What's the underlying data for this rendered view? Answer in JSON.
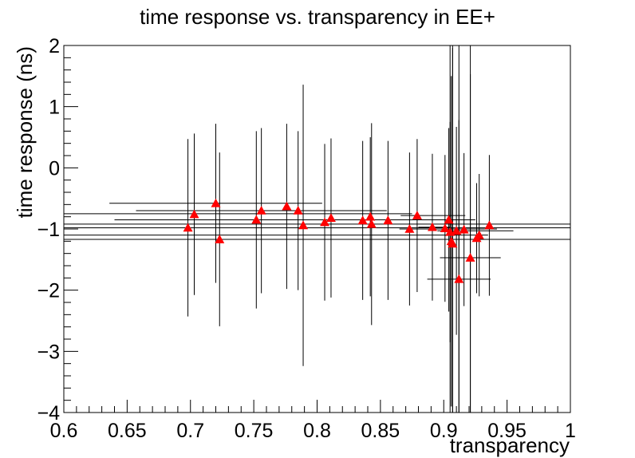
{
  "chart_data": {
    "type": "scatter",
    "title": "time response vs. transparency in EE+",
    "xlabel": "transparency",
    "ylabel": "time response (ns)",
    "xlim": [
      0.6,
      1.0
    ],
    "ylim": [
      -4,
      2
    ],
    "x_ticks": [
      "0.6",
      "0.65",
      "0.7",
      "0.75",
      "0.8",
      "0.85",
      "0.9",
      "0.95",
      "1"
    ],
    "y_ticks": [
      "−4",
      "−3",
      "−2",
      "−1",
      "0",
      "1",
      "2"
    ],
    "grid": false,
    "marker": "triangle-up",
    "marker_color": "#ff0000",
    "errorbar_color": "#000000",
    "points": [
      {
        "x": 0.698,
        "y": -0.98,
        "xerr": 0.0,
        "yerr": 1.45
      },
      {
        "x": 0.703,
        "y": -0.76,
        "xerr": 0.0,
        "yerr": 1.32
      },
      {
        "x": 0.72,
        "y": -0.58,
        "xerr": 0.0,
        "yerr": 1.3
      },
      {
        "x": 0.723,
        "y": -1.17,
        "xerr": 0.0,
        "yerr": 1.42
      },
      {
        "x": 0.752,
        "y": -0.85,
        "xerr": 0.0,
        "yerr": 1.45
      },
      {
        "x": 0.756,
        "y": -0.7,
        "xerr": 0.0,
        "yerr": 1.35
      },
      {
        "x": 0.776,
        "y": -0.63,
        "xerr": 0.0,
        "yerr": 1.35
      },
      {
        "x": 0.785,
        "y": -0.7,
        "xerr": 0.0,
        "yerr": 1.3
      },
      {
        "x": 0.789,
        "y": -0.94,
        "xerr": 0.0,
        "yerr": 2.3
      },
      {
        "x": 0.806,
        "y": -0.89,
        "xerr": 0.0,
        "yerr": 1.28
      },
      {
        "x": 0.811,
        "y": -0.82,
        "xerr": 0.0,
        "yerr": 1.3
      },
      {
        "x": 0.836,
        "y": -0.86,
        "xerr": 0.0,
        "yerr": 1.3
      },
      {
        "x": 0.842,
        "y": -0.8,
        "xerr": 0.0,
        "yerr": 1.3
      },
      {
        "x": 0.843,
        "y": -0.92,
        "xerr": 0.0,
        "yerr": 1.65
      },
      {
        "x": 0.856,
        "y": -0.86,
        "xerr": 0.0,
        "yerr": 1.3
      },
      {
        "x": 0.873,
        "y": -1.0,
        "xerr": 0.0,
        "yerr": 1.25
      },
      {
        "x": 0.879,
        "y": -0.78,
        "xerr": 0.0,
        "yerr": 1.25
      },
      {
        "x": 0.891,
        "y": -0.97,
        "xerr": 0.0,
        "yerr": 1.2
      },
      {
        "x": 0.901,
        "y": -0.99,
        "xerr": 0.0,
        "yerr": 1.2
      },
      {
        "x": 0.904,
        "y": -0.85,
        "xerr": 0.0,
        "yerr": 1.5
      },
      {
        "x": 0.905,
        "y": -1.05,
        "xerr": 0.0,
        "yerr": 1.8
      },
      {
        "x": 0.906,
        "y": -1.2,
        "xerr": 0.0,
        "yerr": 2.7
      },
      {
        "x": 0.907,
        "y": -1.24,
        "xerr": 0.0,
        "yerr": 3.2
      },
      {
        "x": 0.91,
        "y": -1.03,
        "xerr": 0.0,
        "yerr": 1.7
      },
      {
        "x": 0.912,
        "y": -1.82,
        "xerr": 0.0,
        "yerr": 2.6
      },
      {
        "x": 0.916,
        "y": -1.01,
        "xerr": 0.0,
        "yerr": 1.25
      },
      {
        "x": 0.921,
        "y": -1.47,
        "xerr": 0.0,
        "yerr": 3.0
      },
      {
        "x": 0.926,
        "y": -1.15,
        "xerr": 0.0,
        "yerr": 0.9
      },
      {
        "x": 0.928,
        "y": -1.1,
        "xerr": 0.0,
        "yerr": 1.0
      },
      {
        "x": 0.936,
        "y": -0.94,
        "xerr": 0.0,
        "yerr": 1.15
      }
    ],
    "horizontal_bars": [
      {
        "y": -0.58,
        "x_from": 0.636,
        "x_to": 0.804
      },
      {
        "y": -0.7,
        "x_from": 0.657,
        "x_to": 0.855
      },
      {
        "y": -0.75,
        "x_from": 0.6,
        "x_to": 0.875
      },
      {
        "y": -0.85,
        "x_from": 0.64,
        "x_to": 0.925
      },
      {
        "y": -0.92,
        "x_from": 0.6,
        "x_to": 1.0
      },
      {
        "y": -0.98,
        "x_from": 0.6,
        "x_to": 1.0
      },
      {
        "y": -1.1,
        "x_from": 0.6,
        "x_to": 0.935
      },
      {
        "y": -1.17,
        "x_from": 0.6,
        "x_to": 1.0
      },
      {
        "y": -1.0,
        "x_from": 0.865,
        "x_to": 0.942
      },
      {
        "y": -0.97,
        "x_from": 0.88,
        "x_to": 0.905
      },
      {
        "y": -1.03,
        "x_from": 0.895,
        "x_to": 0.955
      },
      {
        "y": -1.47,
        "x_from": 0.897,
        "x_to": 0.945
      },
      {
        "y": -1.82,
        "x_from": 0.887,
        "x_to": 0.937
      },
      {
        "y": -0.78,
        "x_from": 0.866,
        "x_to": 0.917
      }
    ],
    "vertical_lines": [
      {
        "x": 0.905,
        "y_from": -4.0,
        "y_to": 2.0
      },
      {
        "x": 0.907,
        "y_from": -4.0,
        "y_to": 2.0
      },
      {
        "x": 0.912,
        "y_from": -4.0,
        "y_to": 2.0
      },
      {
        "x": 0.921,
        "y_from": -4.0,
        "y_to": 2.0
      }
    ]
  }
}
